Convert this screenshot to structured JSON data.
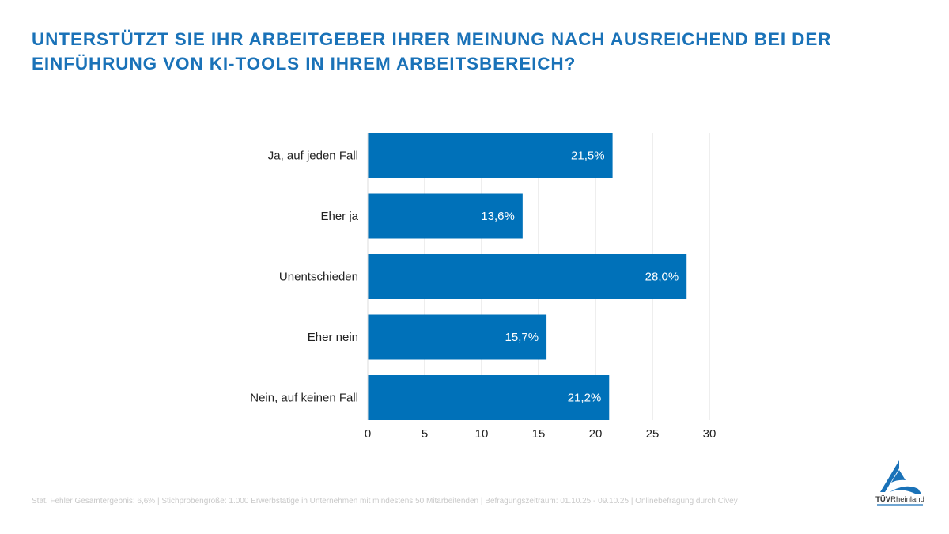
{
  "title_lines": [
    "UNTERSTÜTZT SIE IHR ARBEITGEBER IHRER MEINUNG NACH AUSREICHEND BEI DER",
    "EINFÜHRUNG VON KI-TOOLS IN IHREM ARBEITSBEREICH?"
  ],
  "chart_data": {
    "type": "bar",
    "orientation": "horizontal",
    "title": "UNTERSTÜTZT SIE IHR ARBEITGEBER IHRER MEINUNG NACH AUSREICHEND BEI DER EINFÜHRUNG VON KI-TOOLS IN IHREM ARBEITSBEREICH?",
    "categories": [
      "Ja, auf jeden Fall",
      "Eher ja",
      "Unentschieden",
      "Eher nein",
      "Nein, auf keinen Fall"
    ],
    "values": [
      21.5,
      13.6,
      28.0,
      15.7,
      21.2
    ],
    "data_labels": [
      "21,5%",
      "13,6%",
      "28,0%",
      "15,7%",
      "21,2%"
    ],
    "xlim": [
      0,
      30
    ],
    "xticks": [
      "0",
      "5",
      "10",
      "15",
      "20",
      "25",
      "30"
    ],
    "grid": true,
    "bar_color": "#0071b9",
    "xlabel": "",
    "ylabel": ""
  },
  "footer": "Stat. Fehler Gesamtergebnis: 6,6% | Stichprobengröße: 1.000 Erwerbstätige in Unternehmen mit mindestens 50 Mitarbeitenden | Befragungszeitraum: 01.10.25 - 09.10.25 | Onlinebefragung durch Civey",
  "logo": {
    "text": "TÜVRheinland",
    "color": "#1a72b8"
  }
}
